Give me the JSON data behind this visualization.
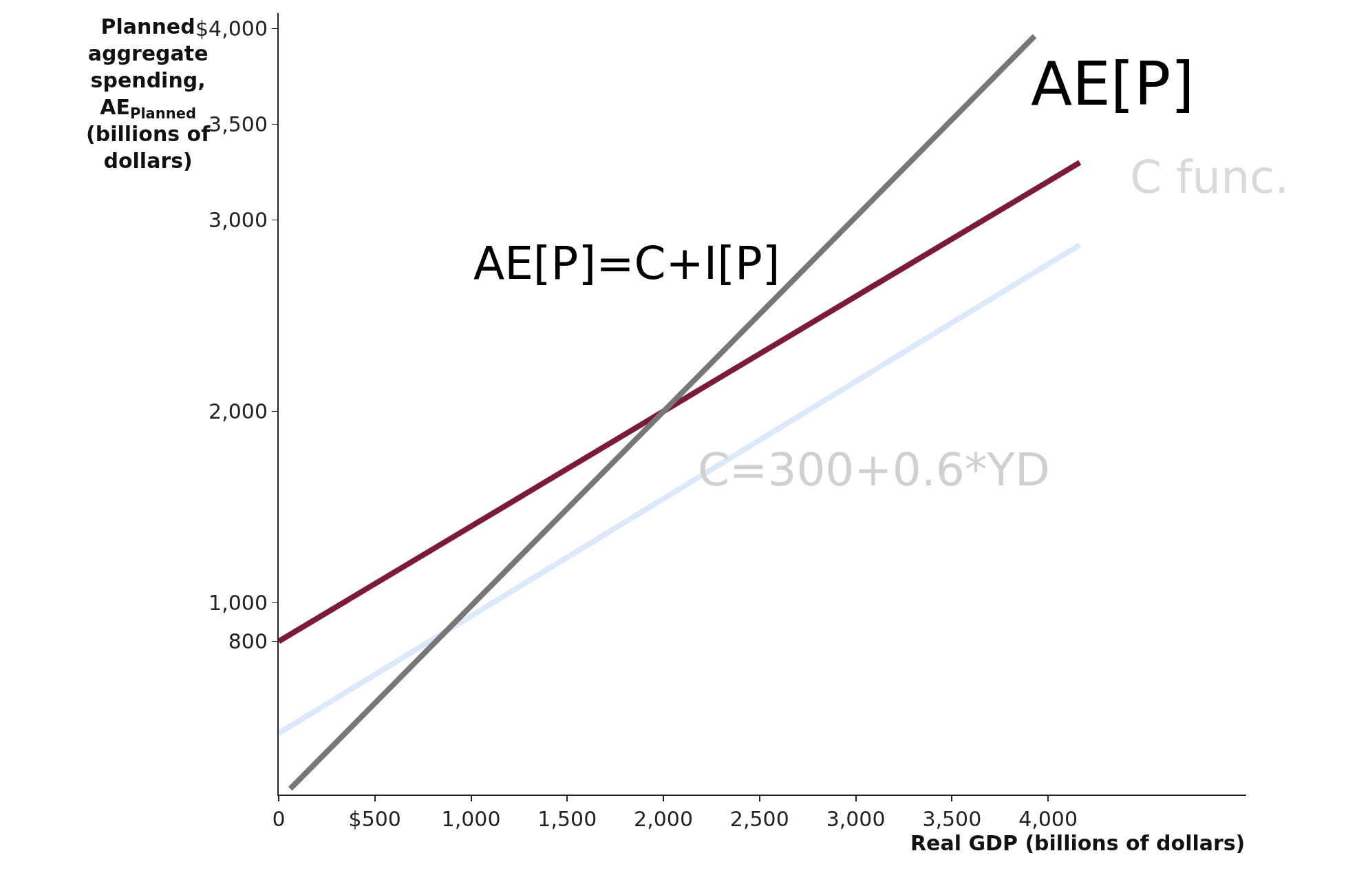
{
  "chart_data": {
    "type": "line",
    "xlabel": "Real GDP (billions of dollars)",
    "ylabel": "Planned\naggregate\nspending,\nAE$_{Planned}$\n(billions of\ndollars)",
    "series": [
      {
        "color": "#7b1a3c",
        "x": [
          0,
          4165
        ],
        "values": [
          800,
          3300
        ]
      },
      {
        "color": "#dce8fb",
        "x": [
          0,
          4165
        ],
        "values": [
          320,
          2870
        ]
      },
      {
        "color": "#777777",
        "x": [
          60,
          3930
        ],
        "values": [
          30,
          3960
        ]
      }
    ],
    "xlim": [
      0,
      5030
    ],
    "ylim": [
      0,
      4080
    ],
    "xticks": [
      0,
      {
        "value": 500,
        "label": "$500"
      },
      {
        "value": 1000,
        "label": "1,000"
      },
      {
        "value": 1500,
        "label": "1,500"
      },
      {
        "value": 2000,
        "label": "2,000"
      },
      {
        "value": 2500,
        "label": "2,500"
      },
      {
        "value": 3000,
        "label": "3,000"
      },
      {
        "value": 3500,
        "label": "3,500"
      },
      {
        "value": 4000,
        "label": "4,000"
      }
    ],
    "yticks": [
      800,
      {
        "value": 1000,
        "label": "1,000"
      },
      {
        "value": 2000,
        "label": "2,000"
      },
      {
        "value": 3000,
        "label": "3,000"
      },
      {
        "value": 3500,
        "label": "3,500"
      },
      {
        "value": 4000,
        "label": "$4,000"
      }
    ],
    "annotations": [
      "AE[P]",
      "AE[P]=C+I[P]",
      "C func.",
      "C=300+0.6*YD"
    ],
    "marker": "none",
    "line_style": "solid"
  }
}
